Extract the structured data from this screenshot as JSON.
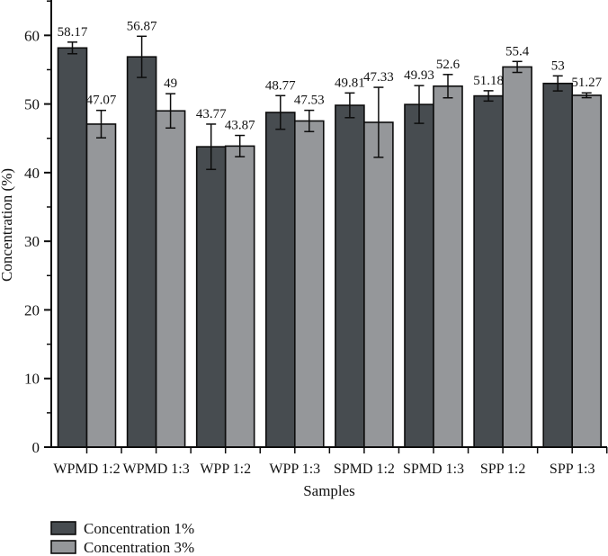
{
  "chart_data": {
    "type": "bar",
    "title": "",
    "xlabel": "Samples",
    "ylabel": "Concentration (%)",
    "categories": [
      "WPMD 1:2",
      "WPMD 1:3",
      "WPP 1:2",
      "WPP 1:3",
      "SPMD 1:2",
      "SPMD 1:3",
      "SPP 1:2",
      "SPP 1:3"
    ],
    "series": [
      {
        "name": "Concentration 1%",
        "color": "#474c50",
        "values": [
          58.17,
          56.87,
          43.77,
          48.77,
          49.81,
          49.93,
          51.18,
          53
        ],
        "errors": [
          0.85,
          3.0,
          3.3,
          2.45,
          1.8,
          2.75,
          0.75,
          1.1
        ]
      },
      {
        "name": "Concentration 3%",
        "color": "#95979a",
        "values": [
          47.07,
          49,
          43.87,
          47.53,
          47.33,
          52.6,
          55.4,
          51.27
        ],
        "errors": [
          2.0,
          2.5,
          1.55,
          1.55,
          5.1,
          1.7,
          0.8,
          0.35
        ]
      }
    ],
    "ylim": [
      0,
      65.2
    ],
    "yticks": [
      0,
      10,
      20,
      30,
      40,
      50,
      60
    ],
    "yminorticks": [
      5,
      15,
      25,
      35,
      45,
      55,
      65
    ],
    "grid": false,
    "legend_position": "bottom-left",
    "bar_border_color": "#0d0d0d",
    "axis_color": "#0d0d0d"
  }
}
